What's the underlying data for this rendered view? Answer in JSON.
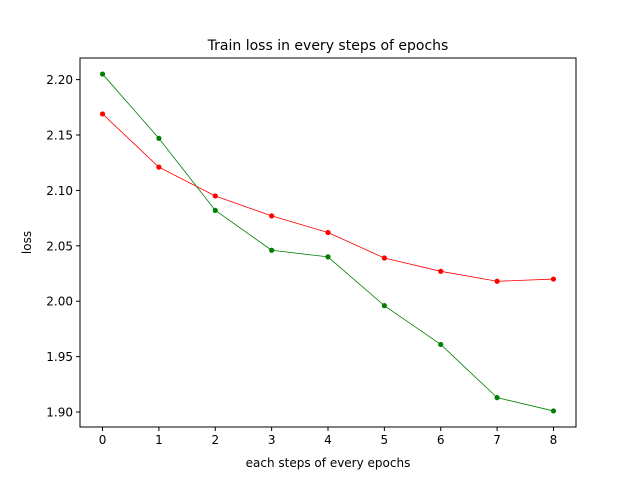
{
  "chart_data": {
    "type": "line",
    "title": "Train loss in every steps of epochs",
    "xlabel": "each steps of every epochs",
    "ylabel": "loss",
    "x": [
      0,
      1,
      2,
      3,
      4,
      5,
      6,
      7,
      8
    ],
    "x_ticks": [
      0,
      1,
      2,
      3,
      4,
      5,
      6,
      7,
      8
    ],
    "y_ticks": [
      1.9,
      1.95,
      2.0,
      2.05,
      2.1,
      2.15,
      2.2
    ],
    "y_tick_labels": [
      "1.90",
      "1.95",
      "2.00",
      "2.05",
      "2.10",
      "2.15",
      "2.20"
    ],
    "xlim": [
      -0.4,
      8.4
    ],
    "ylim": [
      1.8865,
      2.2195
    ],
    "grid": false,
    "legend": "none",
    "series": [
      {
        "color": "#ff0000",
        "marker": "circle",
        "values": [
          2.169,
          2.121,
          2.095,
          2.077,
          2.062,
          2.039,
          2.027,
          2.018,
          2.02
        ]
      },
      {
        "color": "#008000",
        "marker": "circle",
        "values": [
          2.205,
          2.147,
          2.082,
          2.046,
          2.04,
          1.996,
          1.961,
          1.913,
          1.901
        ]
      }
    ]
  }
}
